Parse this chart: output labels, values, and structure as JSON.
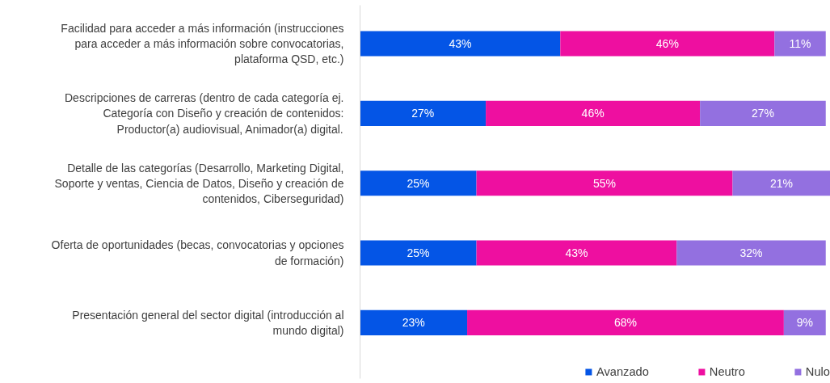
{
  "chart_data": {
    "type": "bar",
    "orientation": "horizontal",
    "stacked": true,
    "legend": "bottom",
    "categories": [
      "Facilidad para acceder a más información (instrucciones para acceder a más información sobre convocatorias, plataforma QSD, etc.)",
      "Descripciones de carreras (dentro de cada categoría ej. Categoría con Diseño y creación de contenidos: Productor(a) audiovisual, Animador(a) digital.",
      "Detalle de las categorías (Desarrollo, Marketing Digital, Soporte y ventas, Ciencia de Datos, Diseño y creación de contenidos, Ciberseguridad)",
      "Oferta de oportunidades (becas, convocatorias y opciones de formación)",
      "Presentación general del sector digital (introducción al mundo digital)"
    ],
    "xlim": [
      0,
      101
    ],
    "series": [
      {
        "name": "Avanzado",
        "color": "#0455e6",
        "values": [
          43,
          27,
          25,
          25,
          23
        ],
        "value_labels": [
          "43%",
          "27%",
          "25%",
          "25%",
          "23%"
        ]
      },
      {
        "name": "Neutro",
        "color": "#ee0fa0",
        "values": [
          46,
          46,
          55,
          43,
          68
        ],
        "value_labels": [
          "46%",
          "46%",
          "55%",
          "43%",
          "68%"
        ]
      },
      {
        "name": "Nulo",
        "color": "#9370e0",
        "values": [
          11,
          27,
          21,
          32,
          9
        ],
        "value_labels": [
          "11%",
          "27%",
          "21%",
          "32%",
          "9%"
        ]
      }
    ]
  }
}
